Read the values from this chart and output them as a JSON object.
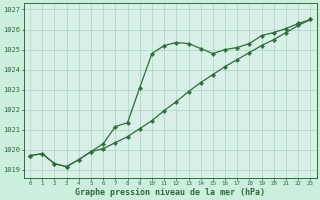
{
  "title": "Graphe pression niveau de la mer (hPa)",
  "background_color": "#cceedd",
  "plot_bg_color": "#d8f0e8",
  "grid_color": "#aad4c0",
  "line_color": "#2d6e3a",
  "x_ticks": [
    0,
    1,
    2,
    3,
    4,
    5,
    6,
    7,
    8,
    9,
    10,
    11,
    12,
    13,
    14,
    15,
    16,
    17,
    18,
    19,
    20,
    21,
    22,
    23
  ],
  "ylim": [
    1018.6,
    1027.3
  ],
  "yticks": [
    1019,
    1020,
    1021,
    1022,
    1023,
    1024,
    1025,
    1026,
    1027
  ],
  "series1_x": [
    0,
    1,
    2,
    3,
    4,
    5,
    6,
    7,
    8,
    9,
    10,
    11,
    12,
    13,
    14,
    15,
    16,
    17,
    18,
    19,
    20,
    21,
    22,
    23
  ],
  "series1_y": [
    1019.7,
    1019.8,
    1019.3,
    1019.15,
    1019.5,
    1019.9,
    1020.3,
    1021.15,
    1021.35,
    1023.1,
    1024.8,
    1025.2,
    1025.35,
    1025.3,
    1025.05,
    1024.8,
    1025.0,
    1025.1,
    1025.3,
    1025.7,
    1025.85,
    1026.05,
    1026.3,
    1026.5
  ],
  "series2_x": [
    0,
    1,
    2,
    3,
    4,
    5,
    6,
    7,
    8,
    9,
    10,
    11,
    12,
    13,
    14,
    15,
    16,
    17,
    18,
    19,
    20,
    21,
    22,
    23
  ],
  "series2_y": [
    1019.7,
    1019.8,
    1019.3,
    1019.15,
    1019.5,
    1019.9,
    1020.05,
    1020.35,
    1020.65,
    1021.05,
    1021.45,
    1021.95,
    1022.4,
    1022.9,
    1023.35,
    1023.75,
    1024.15,
    1024.5,
    1024.85,
    1025.2,
    1025.5,
    1025.85,
    1026.2,
    1026.5
  ]
}
